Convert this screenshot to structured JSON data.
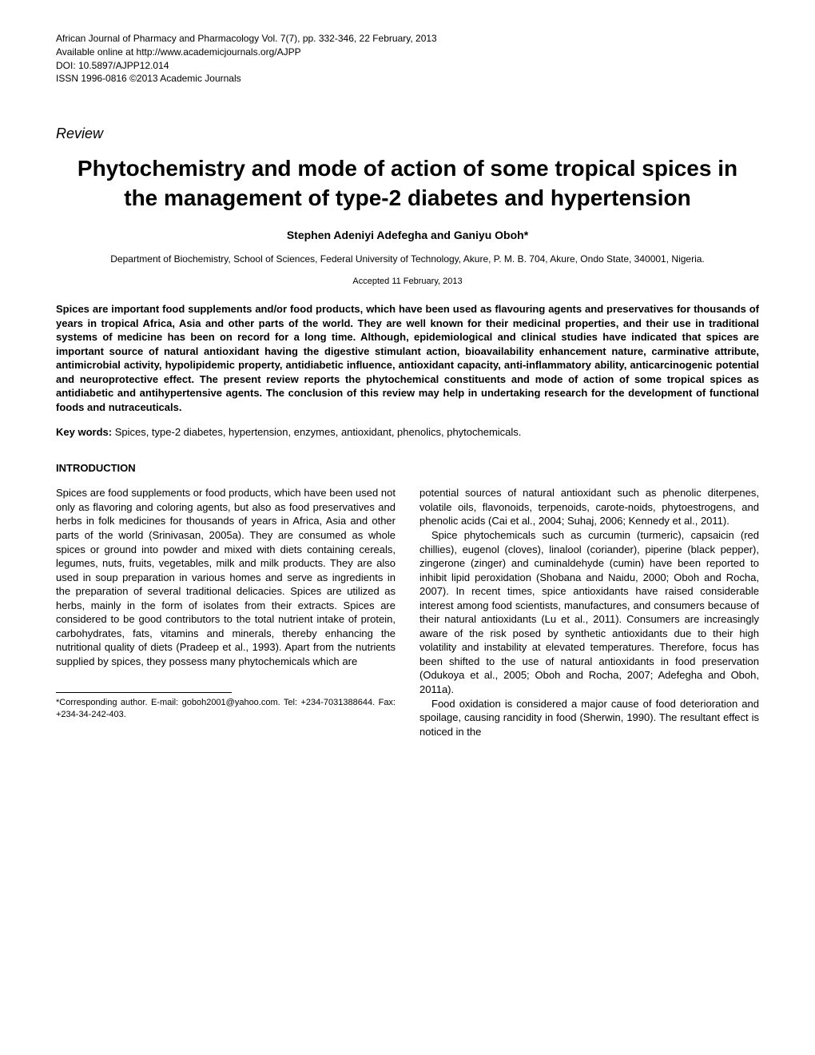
{
  "header": {
    "line1": "African Journal of Pharmacy and Pharmacology Vol. 7(7), pp. 332-346, 22 February, 2013",
    "line2": "Available online at http://www.academicjournals.org/AJPP",
    "line3": "DOI: 10.5897/AJPP12.014",
    "line4": "ISSN 1996-0816 ©2013 Academic Journals"
  },
  "review_label": "Review",
  "title": "Phytochemistry and mode of action of some tropical spices in the management of type-2 diabetes and hypertension",
  "authors": "Stephen Adeniyi Adefegha and Ganiyu Oboh*",
  "affiliation": "Department of Biochemistry, School of Sciences, Federal University of Technology, Akure, P. M. B. 704, Akure, Ondo State, 340001, Nigeria.",
  "accepted": "Accepted 11 February, 2013",
  "abstract": "Spices are important food supplements and/or food products, which have been used as flavouring agents and preservatives for thousands of years in tropical Africa, Asia and other parts of the world. They are well known for their medicinal properties, and their use in traditional systems of medicine has been on record for a long time. Although, epidemiological and clinical studies have indicated that spices are important source of natural antioxidant having the digestive stimulant action, bioavailability enhancement nature, carminative attribute, antimicrobial activity, hypolipidemic property, antidiabetic influence, antioxidant capacity, anti-inflammatory ability, anticarcinogenic potential and neuroprotective effect. The present review reports the phytochemical constituents and mode of action of some tropical spices as antidiabetic and antihypertensive agents. The conclusion of this review may help in undertaking research for the development of functional foods and nutraceuticals.",
  "keywords_label": "Key words:",
  "keywords": " Spices, type-2 diabetes, hypertension, enzymes, antioxidant, phenolics, phytochemicals.",
  "section_heading": "INTRODUCTION",
  "col1_p1": "Spices are food supplements or food products, which have been used not only as flavoring and coloring agents, but also as food preservatives and herbs in folk medicines for thousands of years in Africa, Asia and other parts of the world (Srinivasan, 2005a). They are consumed as whole spices or ground into powder and mixed with diets containing cereals, legumes, nuts, fruits, vegetables, milk and milk products. They are also used in soup preparation in various homes and serve as ingredients in the preparation of several traditional delicacies. Spices are utilized as herbs, mainly in the form of isolates from their extracts. Spices are considered to be good contributors to the total nutrient intake of protein, carbohydrates, fats, vitamins and minerals, thereby enhancing the nutritional quality of diets (Pradeep et al., 1993). Apart from the nutrients supplied by spices, they possess many phytochemicals which  are",
  "col2_p1": "potential sources of natural antioxidant such as phenolic diterpenes, volatile oils, flavonoids, terpenoids, carote-noids, phytoestrogens, and phenolic acids (Cai et al., 2004; Suhaj, 2006; Kennedy et al., 2011).",
  "col2_p2": "Spice phytochemicals such as curcumin (turmeric), capsaicin (red chillies), eugenol (cloves), linalool (coriander), piperine (black pepper), zingerone (zinger) and cuminaldehyde (cumin) have been reported to inhibit lipid peroxidation (Shobana and Naidu, 2000; Oboh and Rocha, 2007). In recent times, spice antioxidants have raised considerable interest among food scientists, manufactures, and consumers because of their natural antioxidants (Lu et al., 2011). Consumers are increasingly aware of the risk posed by synthetic antioxidants due to their high volatility and instability at elevated temperatures. Therefore, focus has been shifted to the use of natural antioxidants in food preservation (Odukoya et al., 2005; Oboh and Rocha, 2007; Adefegha and Oboh, 2011a).",
  "col2_p3": "Food oxidation is considered a major cause of food deterioration and spoilage, causing rancidity in food (Sherwin, 1990). The resultant effect is noticed in the",
  "footnote": "*Corresponding author. E-mail: goboh2001@yahoo.com. Tel: +234-7031388644. Fax: +234-34-242-403."
}
